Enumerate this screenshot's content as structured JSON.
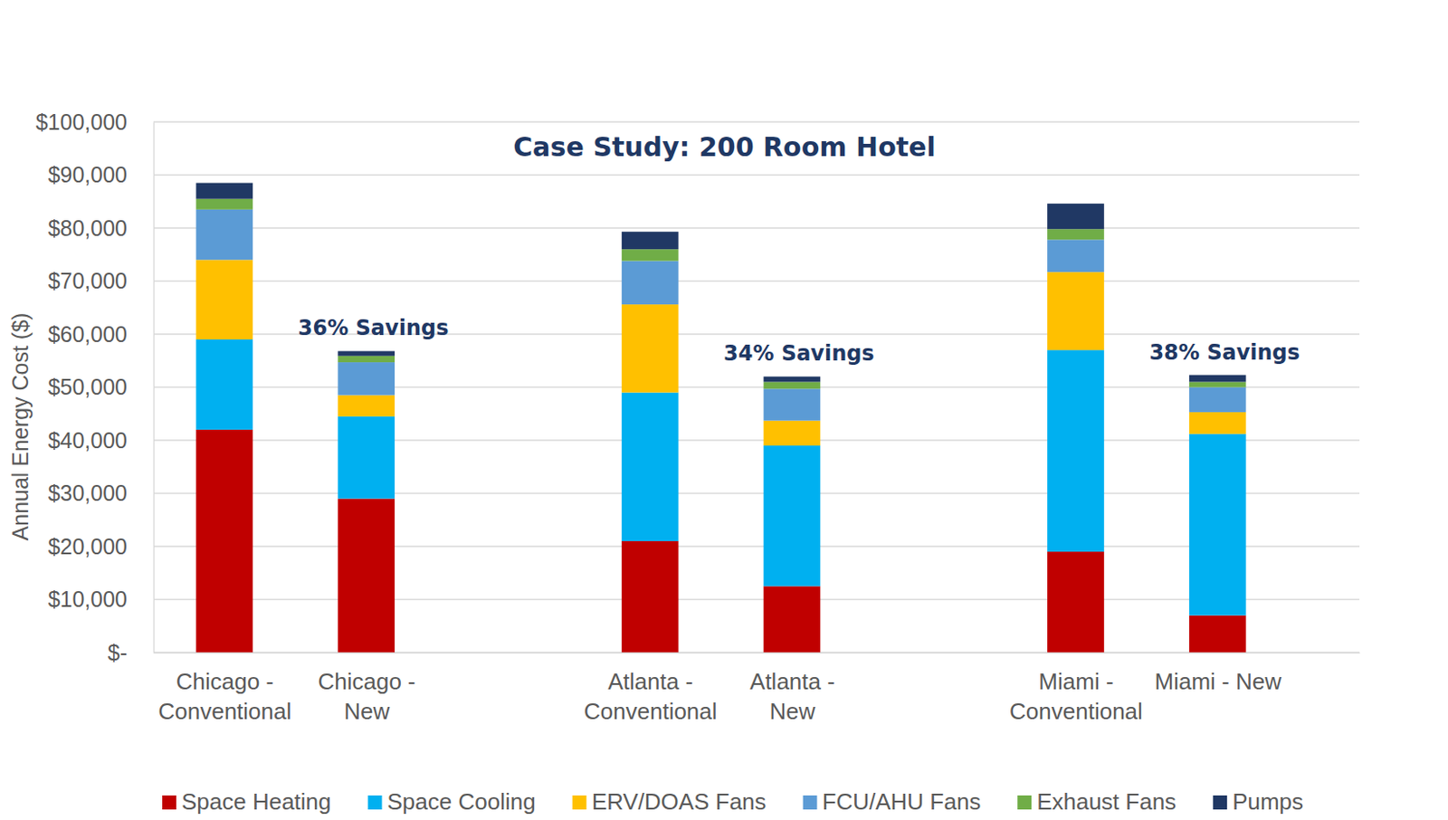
{
  "chart_data": {
    "type": "bar",
    "stacked": true,
    "title": "Case Study: 200 Room Hotel",
    "y_label": "Annual Energy Cost ($)",
    "categories": [
      "Chicago - Conventional",
      "Chicago - New",
      "Atlanta - Conventional",
      "Atlanta - New",
      "Miami - Conventional",
      "Miami - New"
    ],
    "series": [
      {
        "name": "Space Heating",
        "color": "#c00000",
        "values": [
          42000,
          29000,
          21000,
          12500,
          19000,
          7000
        ]
      },
      {
        "name": "Space Cooling",
        "color": "#00b0f0",
        "values": [
          17000,
          15500,
          28000,
          26500,
          38000,
          34200
        ]
      },
      {
        "name": "ERV/DOAS Fans",
        "color": "#ffc000",
        "values": [
          15000,
          4000,
          16600,
          4700,
          14700,
          4100
        ]
      },
      {
        "name": "FCU/AHU Fans",
        "color": "#5b9bd5",
        "values": [
          9500,
          6200,
          8200,
          6000,
          6100,
          4700
        ]
      },
      {
        "name": "Exhaust Fans",
        "color": "#70ad47",
        "values": [
          2000,
          1200,
          2200,
          1300,
          2000,
          1000
        ]
      },
      {
        "name": "Pumps",
        "color": "#203864",
        "values": [
          3000,
          900,
          3300,
          1000,
          4800,
          1300
        ]
      }
    ],
    "annotations": [
      {
        "text": "36% Savings",
        "category": "Chicago - New"
      },
      {
        "text": "34% Savings",
        "category": "Atlanta - New"
      },
      {
        "text": "38% Savings",
        "category": "Miami - New"
      }
    ],
    "ylim": [
      0,
      100000
    ],
    "yticks": [
      {
        "value": 0,
        "label": "$-"
      },
      {
        "value": 10000,
        "label": "$10,000"
      },
      {
        "value": 20000,
        "label": "$20,000"
      },
      {
        "value": 30000,
        "label": "$30,000"
      },
      {
        "value": 40000,
        "label": "$40,000"
      },
      {
        "value": 50000,
        "label": "$50,000"
      },
      {
        "value": 60000,
        "label": "$60,000"
      },
      {
        "value": 70000,
        "label": "$70,000"
      },
      {
        "value": 80000,
        "label": "$80,000"
      },
      {
        "value": 90000,
        "label": "$90,000"
      },
      {
        "value": 100000,
        "label": "$100,000"
      }
    ],
    "grid": true,
    "legend": "bottom"
  }
}
